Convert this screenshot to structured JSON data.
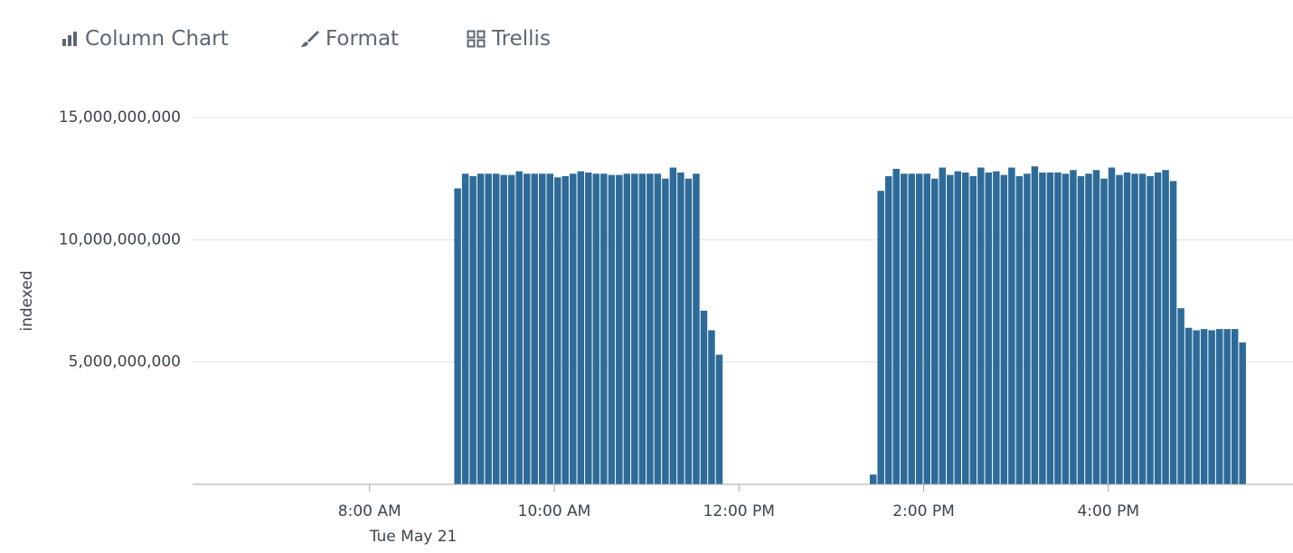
{
  "toolbar": {
    "items": [
      "Column Chart",
      "Format",
      "Trellis"
    ]
  },
  "chart_data": {
    "type": "bar",
    "y_label": "indexed",
    "color": "#2e6b98",
    "grid": true,
    "x_sublabel": "Tue May 21",
    "xlim": [
      "06:05",
      "18:00"
    ],
    "xticks": [
      {
        "value": "08:00",
        "label": "8:00 AM"
      },
      {
        "value": "10:00",
        "label": "10:00 AM"
      },
      {
        "value": "12:00",
        "label": "12:00 PM"
      },
      {
        "value": "14:00",
        "label": "2:00 PM"
      },
      {
        "value": "16:00",
        "label": "4:00 PM"
      }
    ],
    "ylim": [
      0,
      15000000000
    ],
    "yticks": [
      {
        "value": 5000000000,
        "label": "5,000,000,000"
      },
      {
        "value": 10000000000,
        "label": "10,000,000,000"
      },
      {
        "value": 15000000000,
        "label": "15,000,000,000"
      }
    ],
    "x": [
      "08:55",
      "09:00",
      "09:05",
      "09:10",
      "09:15",
      "09:20",
      "09:25",
      "09:30",
      "09:35",
      "09:40",
      "09:45",
      "09:50",
      "09:55",
      "10:00",
      "10:05",
      "10:10",
      "10:15",
      "10:20",
      "10:25",
      "10:30",
      "10:35",
      "10:40",
      "10:45",
      "10:50",
      "10:55",
      "11:00",
      "11:05",
      "11:10",
      "11:15",
      "11:20",
      "11:25",
      "11:30",
      "11:35",
      "11:40",
      "11:45",
      "13:25",
      "13:30",
      "13:35",
      "13:40",
      "13:45",
      "13:50",
      "13:55",
      "14:00",
      "14:05",
      "14:10",
      "14:15",
      "14:20",
      "14:25",
      "14:30",
      "14:35",
      "14:40",
      "14:45",
      "14:50",
      "14:55",
      "15:00",
      "15:05",
      "15:10",
      "15:15",
      "15:20",
      "15:25",
      "15:30",
      "15:35",
      "15:40",
      "15:45",
      "15:50",
      "15:55",
      "16:00",
      "16:05",
      "16:10",
      "16:15",
      "16:20",
      "16:25",
      "16:30",
      "16:35",
      "16:40",
      "16:45",
      "16:50",
      "16:55",
      "17:00",
      "17:05",
      "17:10",
      "17:15",
      "17:20",
      "17:25"
    ],
    "values": [
      12100000000,
      12700000000,
      12600000000,
      12700000000,
      12700000000,
      12700000000,
      12650000000,
      12650000000,
      12800000000,
      12700000000,
      12700000000,
      12700000000,
      12700000000,
      12550000000,
      12600000000,
      12700000000,
      12800000000,
      12750000000,
      12700000000,
      12700000000,
      12650000000,
      12650000000,
      12700000000,
      12700000000,
      12700000000,
      12700000000,
      12700000000,
      12500000000,
      12950000000,
      12750000000,
      12500000000,
      12700000000,
      7100000000,
      6300000000,
      5300000000,
      400000000,
      12000000000,
      12600000000,
      12900000000,
      12700000000,
      12700000000,
      12700000000,
      12700000000,
      12500000000,
      12950000000,
      12650000000,
      12800000000,
      12750000000,
      12600000000,
      12950000000,
      12750000000,
      12800000000,
      12650000000,
      12950000000,
      12600000000,
      12700000000,
      13000000000,
      12750000000,
      12750000000,
      12750000000,
      12700000000,
      12850000000,
      12600000000,
      12700000000,
      12850000000,
      12500000000,
      12950000000,
      12650000000,
      12750000000,
      12700000000,
      12700000000,
      12600000000,
      12750000000,
      12850000000,
      12400000000,
      7200000000,
      6400000000,
      6300000000,
      6350000000,
      6300000000,
      6350000000,
      6350000000,
      6350000000,
      5800000000
    ]
  }
}
